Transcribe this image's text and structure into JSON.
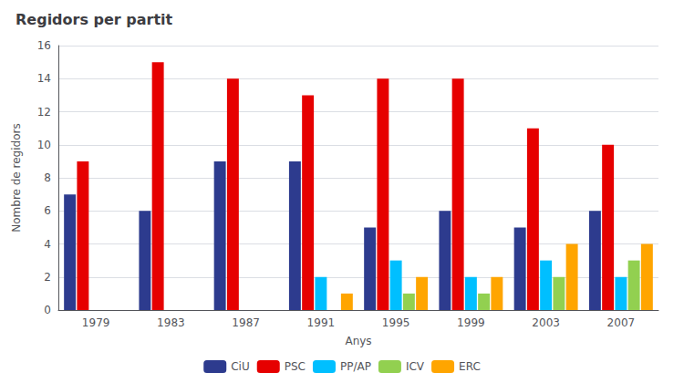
{
  "chart_data": {
    "type": "bar",
    "title": "Regidors per partit",
    "categories": [
      "1979",
      "1983",
      "1987",
      "1991",
      "1995",
      "1999",
      "2003",
      "2007"
    ],
    "series": [
      {
        "name": "CiU",
        "color": "#2d3b8e",
        "values": [
          7,
          6,
          9,
          9,
          5,
          6,
          5,
          6
        ]
      },
      {
        "name": "PSC",
        "color": "#e60000",
        "values": [
          9,
          15,
          14,
          13,
          14,
          14,
          11,
          10
        ]
      },
      {
        "name": "PP/AP",
        "color": "#00bfff",
        "values": [
          0,
          0,
          0,
          2,
          3,
          2,
          3,
          2
        ]
      },
      {
        "name": "ICV",
        "color": "#92d050",
        "values": [
          0,
          0,
          0,
          0,
          1,
          1,
          2,
          3
        ]
      },
      {
        "name": "ERC",
        "color": "#ffa500",
        "values": [
          0,
          0,
          0,
          1,
          2,
          2,
          4,
          4
        ]
      }
    ],
    "xlabel": "Anys",
    "ylabel": "Nombre de regidors",
    "ylim": [
      0,
      16
    ],
    "yticks": [
      0,
      2,
      4,
      6,
      8,
      10,
      12,
      14,
      16
    ],
    "grid": true,
    "legend": "bottom"
  }
}
